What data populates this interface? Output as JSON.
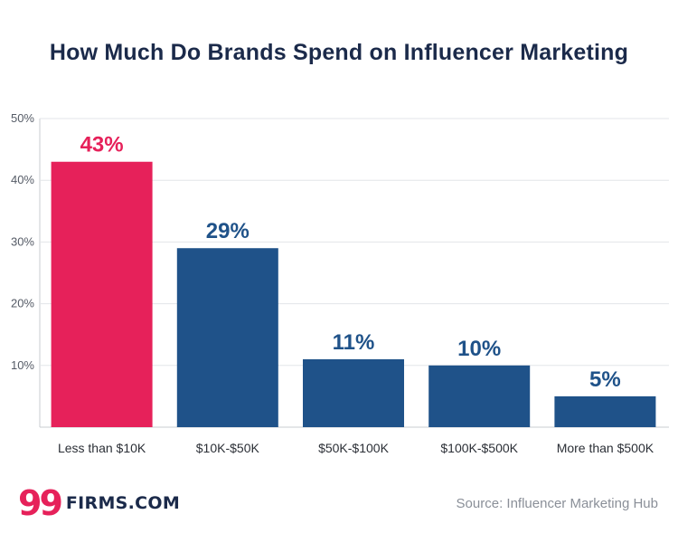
{
  "chart_data": {
    "type": "bar",
    "title": "How Much Do Brands Spend on Influencer Marketing",
    "categories": [
      "Less than $10K",
      "$10K-$50K",
      "$50K-$100K",
      "$100K-$500K",
      "More than $500K"
    ],
    "values": [
      43,
      29,
      11,
      10,
      5
    ],
    "data_labels": [
      "43%",
      "29%",
      "11%",
      "10%",
      "5%"
    ],
    "ylim": [
      0,
      50
    ],
    "yticks": [
      10,
      20,
      30,
      40,
      50
    ],
    "ytick_labels": [
      "10%",
      "20%",
      "30%",
      "40%",
      "50%"
    ],
    "grid": true,
    "colors": [
      "#e6215a",
      "#1f5289",
      "#1f5289",
      "#1f5289",
      "#1f5289"
    ]
  },
  "footer": {
    "logo_mark": "99",
    "logo_text": "FIRMS.COM",
    "source": "Source: Influencer Marketing Hub"
  }
}
